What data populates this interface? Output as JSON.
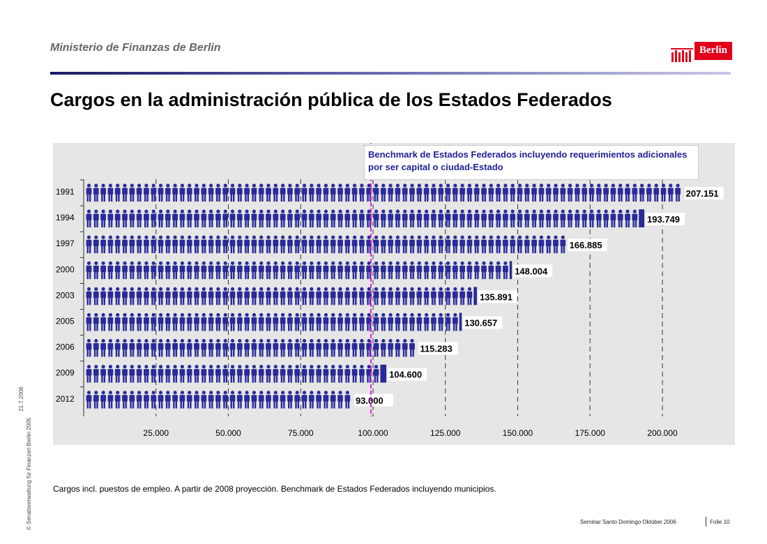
{
  "header": {
    "ministry": "Ministerio de Finanzas de Berlin",
    "logo_text": "Berlin"
  },
  "title": "Cargos en la administración pública de los Estados Federados",
  "footnote": "Cargos incl. puestos de empleo. A partir de 2008 proyección. Benchmark de Estados Federados incluyendo municipios.",
  "side": {
    "copyright": "© Senatsverwaltung für Finanzen Berlin 2005",
    "date": "21.7.2006"
  },
  "footer": {
    "seminar": "Seminar Santo Domingo Oktober 2006",
    "slide": "Folie 10"
  },
  "colors": {
    "bar": "#2a2a99",
    "benchmark_line": "#e020e0",
    "logo_red": "#e10019",
    "panel": "#e6e6e6",
    "annotation": "#1f1f99"
  },
  "chart_data": {
    "type": "bar",
    "orientation": "horizontal",
    "categories": [
      "1991",
      "1994",
      "1997",
      "2000",
      "2003",
      "2005",
      "2006",
      "2009",
      "2012"
    ],
    "values": [
      207151,
      193749,
      166885,
      148004,
      135891,
      130657,
      115283,
      104600,
      93000
    ],
    "value_labels": [
      "207.151",
      "193.749",
      "166.885",
      "148.004",
      "135.891",
      "130.657",
      "115.283",
      "104.600",
      "93.000"
    ],
    "xlim": [
      0,
      210000
    ],
    "x_ticks": [
      25000,
      50000,
      75000,
      100000,
      125000,
      150000,
      175000,
      200000
    ],
    "x_tick_labels": [
      "25.000",
      "50.000",
      "75.000",
      "100.000",
      "125.000",
      "150.000",
      "175.000",
      "200.000"
    ],
    "benchmark": {
      "value": 100000,
      "label": "Benchmark de Estados Federados incluyendo requerimientos adicionales por ser capital o ciudad-Estado"
    },
    "mark_style": "pictogram-people",
    "grid": "vertical-dashed",
    "title": "",
    "xlabel": "",
    "ylabel": ""
  }
}
